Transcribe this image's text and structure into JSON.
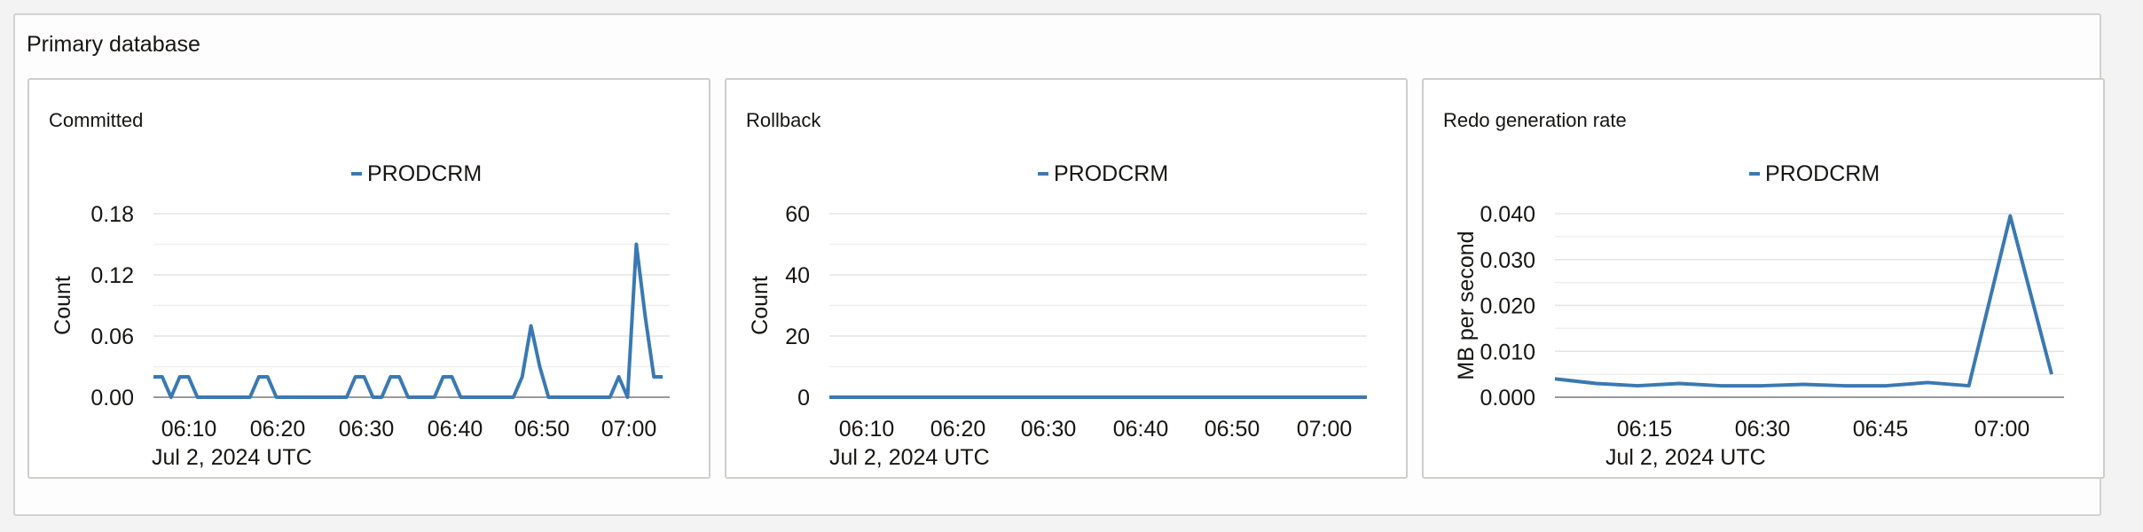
{
  "section_title": "Primary database",
  "colors": {
    "series": "#3a79b2",
    "grid": "#e4e4e4",
    "axis": "#9a9a9a"
  },
  "chart_data": [
    {
      "type": "line",
      "title": "Committed",
      "legend": [
        "PRODCRM"
      ],
      "ylabel": "Count",
      "xlabel": "Jul 2, 2024 UTC",
      "ylim": [
        0,
        0.18
      ],
      "yticks": [
        "0.00",
        "0.06",
        "0.12",
        "0.18"
      ],
      "xticks": [
        "06:10",
        "06:20",
        "06:30",
        "06:40",
        "06:50",
        "07:00"
      ],
      "xlim": [
        0,
        58.8
      ],
      "series": [
        {
          "name": "PRODCRM",
          "x": [
            0,
            1,
            2,
            3,
            4,
            5,
            6,
            7,
            8,
            9,
            10,
            11,
            12,
            13,
            14,
            15,
            16,
            17,
            18,
            19,
            20,
            21,
            22,
            23,
            24,
            25,
            26,
            27,
            28,
            29,
            30,
            31,
            32,
            33,
            34,
            35,
            36,
            37,
            38,
            39,
            40,
            41,
            42,
            43,
            44,
            45,
            46,
            47,
            48,
            49,
            50,
            51,
            52,
            53,
            54,
            55,
            56,
            57,
            58
          ],
          "values": [
            0.02,
            0.02,
            0,
            0.02,
            0.02,
            0,
            0,
            0,
            0,
            0,
            0,
            0,
            0.02,
            0.02,
            0,
            0,
            0,
            0,
            0,
            0,
            0,
            0,
            0,
            0.02,
            0.02,
            0,
            0,
            0.02,
            0.02,
            0,
            0,
            0,
            0,
            0.02,
            0.02,
            0,
            0,
            0,
            0,
            0,
            0,
            0,
            0.02,
            0.07,
            0.03,
            0,
            0,
            0,
            0,
            0,
            0,
            0,
            0,
            0.02,
            0,
            0.15,
            0.08,
            0.02,
            0.02
          ]
        }
      ]
    },
    {
      "type": "line",
      "title": "Rollback",
      "legend": [
        "PRODCRM"
      ],
      "ylabel": "Count",
      "xlabel": "Jul 2, 2024 UTC",
      "ylim": [
        0,
        60
      ],
      "yticks": [
        "0",
        "20",
        "40",
        "60"
      ],
      "xticks": [
        "06:10",
        "06:20",
        "06:30",
        "06:40",
        "06:50",
        "07:00"
      ],
      "xlim": [
        0,
        60
      ],
      "series": [
        {
          "name": "PRODCRM",
          "x": [
            0,
            60
          ],
          "values": [
            0,
            0
          ]
        }
      ]
    },
    {
      "type": "line",
      "title": "Redo generation rate",
      "legend": [
        "PRODCRM"
      ],
      "ylabel": "MB per second",
      "xlabel": "Jul 2, 2024 UTC",
      "ylim": [
        0,
        0.04
      ],
      "yticks": [
        "0.000",
        "0.010",
        "0.020",
        "0.030",
        "0.040"
      ],
      "xticks": [
        "06:15",
        "06:30",
        "06:45",
        "07:00"
      ],
      "xlim": [
        0,
        12.3
      ],
      "series": [
        {
          "name": "PRODCRM",
          "x": [
            0,
            1,
            2,
            3,
            4,
            5,
            6,
            7,
            8,
            9,
            10,
            11,
            12
          ],
          "values": [
            0.004,
            0.003,
            0.0025,
            0.003,
            0.0025,
            0.0025,
            0.0028,
            0.0025,
            0.0025,
            0.0032,
            0.0025,
            0.0395,
            0.005
          ]
        }
      ]
    }
  ]
}
